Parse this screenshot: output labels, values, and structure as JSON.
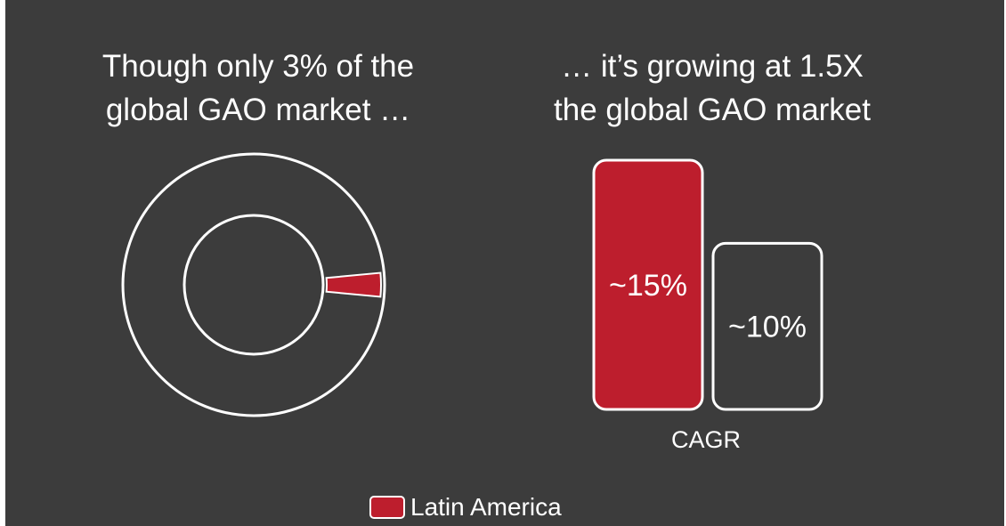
{
  "headings": {
    "left": "Though only 3% of the\nglobal GAO market …",
    "right": "… it’s growing at 1.5X\nthe global GAO market"
  },
  "colors": {
    "background": "#3c3c3c",
    "accent": "#bd1e2d",
    "outline": "#ffffff"
  },
  "chart_data": [
    {
      "type": "pie",
      "variant": "donut",
      "title": "",
      "slices": [
        {
          "name": "Latin America",
          "value": 3,
          "color": "#bd1e2d"
        },
        {
          "name": "",
          "value": 97,
          "color": "#3c3c3c"
        }
      ]
    },
    {
      "type": "bar",
      "title": "",
      "xlabel": "CAGR",
      "ylabel": "",
      "categories": [
        "",
        ""
      ],
      "values": [
        15,
        10
      ],
      "data_labels": [
        "~15%",
        "~10%"
      ],
      "colors": [
        "#bd1e2d",
        "#3c3c3c"
      ],
      "ylim": [
        0,
        15
      ],
      "grid": false
    }
  ],
  "legend": {
    "position": "bottom-center",
    "label": "Latin America"
  }
}
